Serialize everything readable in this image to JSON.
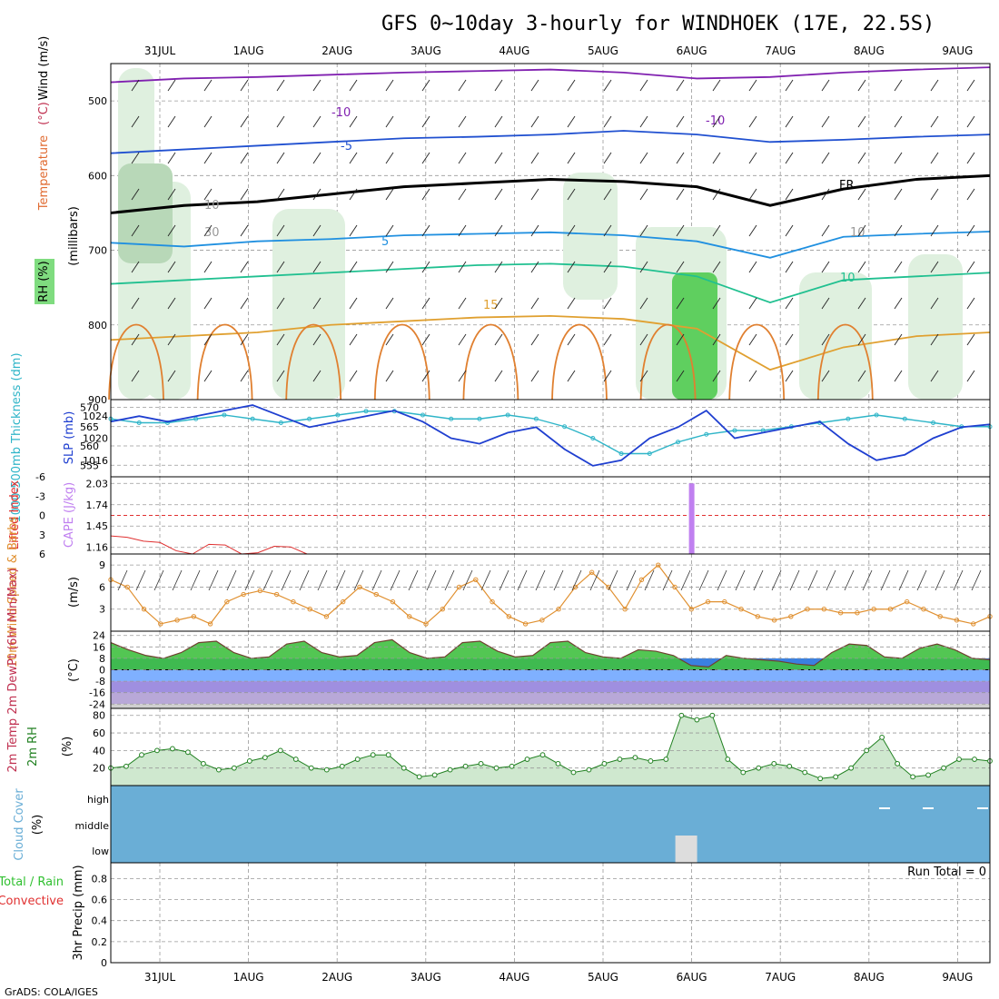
{
  "title": "GFS 0~10day 3-hourly for WINDHOEK (17E, 22.5S)",
  "credit": "GrADS: COLA/IGES",
  "colors": {
    "rh_green": "#7fdc7f",
    "slp": "#1f3fd0",
    "thickness": "#2fb5c8",
    "cape": "#c080f0",
    "lifted": "#e03030",
    "wind": "#e09030",
    "temp_fill": "#40c040",
    "rh_line": "#208020",
    "cloud": "#6aaed6"
  },
  "chart_data": {
    "type": "meteogram",
    "x_dates": [
      "31JUL",
      "1AUG",
      "2AUG",
      "3AUG",
      "4AUG",
      "5AUG",
      "6AUG",
      "7AUG",
      "8AUG",
      "9AUG"
    ],
    "panels": [
      {
        "id": "upper_air",
        "ylabel_parts": [
          "RH (%)",
          "Temperature",
          "(°C)",
          "Wind",
          "(m/s)"
        ],
        "ylabel2": "(millibars)",
        "yticks": [
          "500",
          "600",
          "700",
          "800",
          "900"
        ],
        "ylim": [
          450,
          900
        ],
        "contour_labels": [
          "-10",
          "-10",
          "-5",
          "FR",
          "5",
          "10",
          "15",
          "10",
          "30",
          "10"
        ],
        "isotherms": [
          {
            "label": "-10",
            "level_mb": [
              475,
              470,
              468,
              465,
              462,
              460,
              458,
              462,
              470,
              468,
              462,
              458,
              455
            ]
          },
          {
            "label": "-5",
            "level_mb": [
              570,
              565,
              560,
              555,
              550,
              548,
              545,
              540,
              545,
              555,
              552,
              548,
              545
            ]
          },
          {
            "label": "FR",
            "level_mb": [
              650,
              640,
              635,
              625,
              615,
              610,
              605,
              608,
              615,
              640,
              618,
              605,
              600
            ]
          },
          {
            "label": "5",
            "level_mb": [
              690,
              695,
              688,
              685,
              680,
              678,
              676,
              680,
              688,
              710,
              682,
              678,
              675
            ]
          },
          {
            "label": "10",
            "level_mb": [
              745,
              740,
              735,
              730,
              725,
              720,
              718,
              722,
              735,
              770,
              740,
              735,
              730
            ]
          },
          {
            "label": "15",
            "level_mb": [
              820,
              815,
              810,
              800,
              795,
              790,
              788,
              792,
              805,
              860,
              830,
              815,
              810
            ]
          }
        ]
      },
      {
        "id": "slp_thickness",
        "ylabel_left": "1000-500mb Thickness (dm)",
        "ylabel_right": "SLP (mb)",
        "yticks_thick": [
          "570",
          "565",
          "560",
          "555"
        ],
        "yticks_slp": [
          "1024",
          "1020",
          "1016"
        ],
        "slp_mb": [
          1023,
          1024,
          1023,
          1024,
          1025,
          1026,
          1024,
          1022,
          1023,
          1024,
          1025,
          1023,
          1020,
          1019,
          1021,
          1022,
          1018,
          1015,
          1016,
          1020,
          1022,
          1025,
          1020,
          1021,
          1022,
          1023,
          1019,
          1016,
          1017,
          1020,
          1022,
          1022.5
        ],
        "thickness_dm": [
          567,
          566,
          566,
          567,
          568,
          567,
          566,
          567,
          568,
          569,
          569,
          568,
          567,
          567,
          568,
          567,
          565,
          562,
          558,
          558,
          561,
          563,
          564,
          564,
          565,
          566,
          567,
          568,
          567,
          566,
          565,
          565
        ]
      },
      {
        "id": "cape_li",
        "ylabel_left": "Lifted Index",
        "ylabel_right": "CAPE (J/kg)",
        "yticks_li": [
          "-6",
          "-3",
          "0",
          "3",
          "6"
        ],
        "yticks_cape": [
          "2.03",
          "1.74",
          "1.45",
          "1.16"
        ],
        "cape_spike_date": "6AUG",
        "cape_value": 2.03,
        "lifted_index_early": [
          3.2,
          3.4,
          4.0,
          4.2,
          5.5,
          6.0,
          4.5,
          4.6,
          6.0,
          5.8,
          4.8,
          4.9,
          6.0
        ]
      },
      {
        "id": "wind10m",
        "ylabel": "10m Wind Speed & Barbs",
        "unit": "(m/s)",
        "yticks": [
          "9",
          "6",
          "3"
        ],
        "speed_ms": [
          7,
          6,
          3,
          1,
          1.5,
          2,
          1,
          4,
          5,
          5.5,
          5,
          4,
          3,
          2,
          4,
          6,
          5,
          4,
          2,
          1,
          3,
          6,
          7,
          4,
          2,
          1,
          1.5,
          3,
          6,
          8,
          6,
          3,
          7,
          9,
          6,
          3,
          4,
          4,
          3,
          2,
          1.5,
          2,
          3,
          3,
          2.5,
          2.5,
          3,
          3,
          4,
          3,
          2,
          1.5,
          1,
          2
        ]
      },
      {
        "id": "temp2m",
        "ylabel": "2m Temp 2m DewPt (6hr Min/Max)",
        "unit": "(°C)",
        "yticks": [
          "24",
          "16",
          "8",
          "0",
          "-8",
          "-16",
          "-24"
        ],
        "temp_c": [
          19,
          14,
          10,
          8,
          12,
          19,
          20,
          12,
          8,
          9,
          18,
          20,
          12,
          9,
          10,
          19,
          21,
          12,
          8,
          9,
          19,
          20,
          13,
          9,
          10,
          19,
          20,
          12,
          9,
          8,
          14,
          13,
          10,
          3,
          2,
          10,
          8,
          7,
          6,
          4,
          3,
          12,
          18,
          17,
          9,
          8,
          15,
          18,
          14,
          8,
          7
        ]
      },
      {
        "id": "rh2m",
        "ylabel": "2m RH",
        "unit": "(%)",
        "yticks": [
          "80",
          "60",
          "40",
          "20"
        ],
        "rh_percent": [
          20,
          22,
          35,
          40,
          42,
          38,
          25,
          18,
          20,
          28,
          32,
          40,
          30,
          20,
          18,
          22,
          30,
          35,
          35,
          20,
          10,
          12,
          18,
          22,
          25,
          20,
          22,
          30,
          35,
          25,
          15,
          18,
          25,
          30,
          32,
          28,
          30,
          80,
          75,
          80,
          30,
          15,
          20,
          25,
          22,
          15,
          8,
          10,
          20,
          40,
          55,
          25,
          10,
          12,
          20,
          30,
          30,
          28
        ]
      },
      {
        "id": "cloud",
        "ylabel": "Cloud Cover",
        "unit": "(%)",
        "yticks": [
          "high",
          "middle",
          "low"
        ],
        "low_cloud_date": "6AUG"
      },
      {
        "id": "precip",
        "ylabel_parts": [
          "Total / Rain",
          "Convective"
        ],
        "ylabel_right": "3hr Precip (mm)",
        "yticks": [
          "0.8",
          "0.6",
          "0.4",
          "0.2",
          "0"
        ],
        "run_total_label": "Run Total = 0",
        "values_mm": []
      }
    ]
  }
}
